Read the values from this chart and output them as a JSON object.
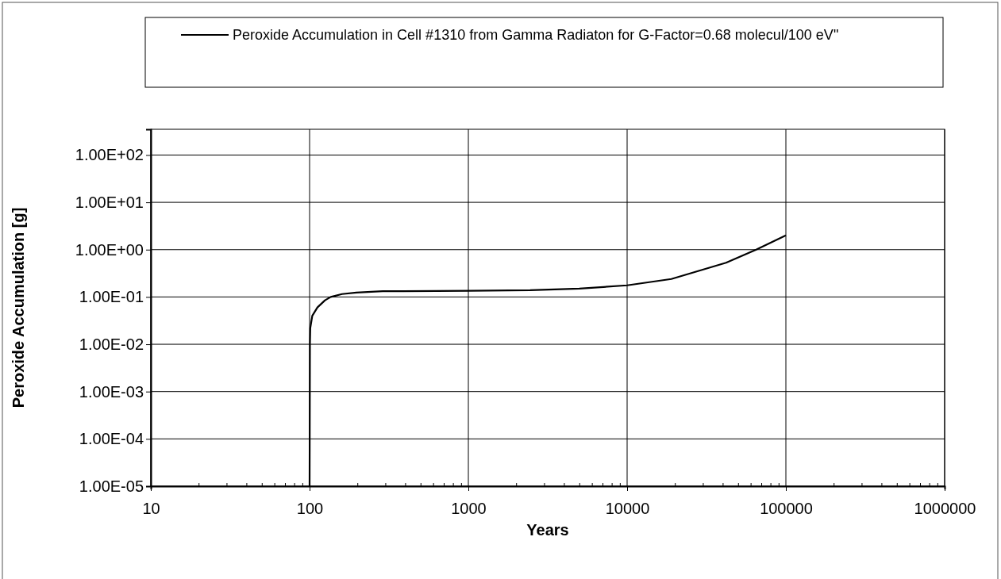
{
  "chart_data": {
    "type": "line",
    "xlabel": "Years",
    "ylabel": "Peroxide Accumulation [g]",
    "log": "xy",
    "grid": true,
    "legend": "top",
    "line_style": "solid",
    "marker": "none",
    "xlim": [
      10,
      1000000
    ],
    "xticks": [
      10,
      {
        "value": 20,
        "label": null
      },
      {
        "value": 30,
        "label": null
      },
      {
        "value": 40,
        "label": null
      },
      {
        "value": 50,
        "label": null
      },
      {
        "value": 60,
        "label": null
      },
      {
        "value": 70,
        "label": null
      },
      {
        "value": 80,
        "label": null
      },
      {
        "value": 90,
        "label": null
      },
      100,
      {
        "value": 200,
        "label": null
      },
      {
        "value": 300,
        "label": null
      },
      {
        "value": 400,
        "label": null
      },
      {
        "value": 500,
        "label": null
      },
      {
        "value": 600,
        "label": null
      },
      {
        "value": 700,
        "label": null
      },
      {
        "value": 800,
        "label": null
      },
      {
        "value": 900,
        "label": null
      },
      1000,
      {
        "value": 2000,
        "label": null
      },
      {
        "value": 3000,
        "label": null
      },
      {
        "value": 4000,
        "label": null
      },
      {
        "value": 5000,
        "label": null
      },
      {
        "value": 6000,
        "label": null
      },
      {
        "value": 7000,
        "label": null
      },
      {
        "value": 8000,
        "label": null
      },
      {
        "value": 9000,
        "label": null
      },
      10000,
      {
        "value": 20000,
        "label": null
      },
      {
        "value": 30000,
        "label": null
      },
      {
        "value": 40000,
        "label": null
      },
      {
        "value": 50000,
        "label": null
      },
      {
        "value": 60000,
        "label": null
      },
      {
        "value": 70000,
        "label": null
      },
      {
        "value": 80000,
        "label": null
      },
      {
        "value": 90000,
        "label": null
      },
      100000,
      {
        "value": 200000,
        "label": null
      },
      {
        "value": 300000,
        "label": null
      },
      {
        "value": 400000,
        "label": null
      },
      {
        "value": 500000,
        "label": null
      },
      {
        "value": 600000,
        "label": null
      },
      {
        "value": 700000,
        "label": null
      },
      {
        "value": 800000,
        "label": null
      },
      {
        "value": 900000,
        "label": null
      },
      1000000
    ],
    "ylim": [
      1e-05,
      350
    ],
    "yticks": [
      {
        "value": 1e-05,
        "label": "1.00E-05"
      },
      {
        "value": 0.0001,
        "label": "1.00E-04"
      },
      {
        "value": 0.001,
        "label": "1.00E-03"
      },
      {
        "value": 0.01,
        "label": "1.00E-02"
      },
      {
        "value": 0.1,
        "label": "1.00E-01"
      },
      {
        "value": 1,
        "label": "1.00E+00"
      },
      {
        "value": 10,
        "label": "1.00E+01"
      },
      {
        "value": 100,
        "label": "1.00E+02"
      }
    ],
    "series": [
      {
        "name": "Peroxide Accumulation in  Cell #1310 from Gamma Radiaton for G-Factor=0.68 molecul/100 eV\"",
        "color": "#000000",
        "x": [
          100,
          100.5,
          101,
          104,
          112,
          125,
          136,
          160,
          197,
          289,
          1000,
          2450,
          5000,
          10000,
          19000,
          42000,
          65000,
          100000
        ],
        "values": [
          1e-05,
          0.01,
          0.022,
          0.04,
          0.06,
          0.085,
          0.1,
          0.115,
          0.124,
          0.132,
          0.135,
          0.139,
          0.15,
          0.176,
          0.24,
          0.53,
          1.0,
          2.0
        ]
      }
    ]
  }
}
